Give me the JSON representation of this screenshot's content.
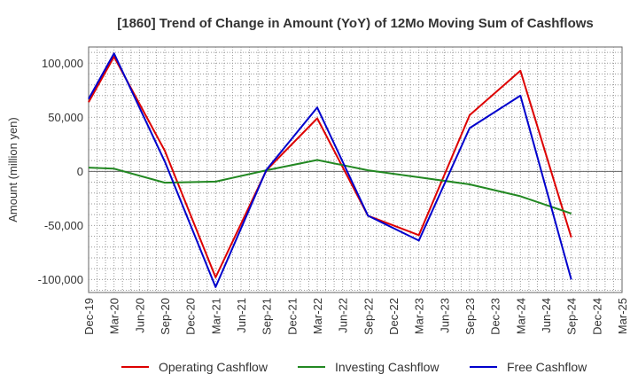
{
  "chart_data": {
    "type": "line",
    "title": "[1860]  Trend of Change in Amount (YoY) of 12Mo Moving Sum of Cashflows",
    "xlabel": "",
    "ylabel": "Amount (million yen)",
    "ylim": [
      -112000,
      115000
    ],
    "yticks": [
      100000,
      50000,
      0,
      -50000,
      -100000
    ],
    "ytick_labels": [
      "100,000",
      "50,000",
      "0",
      "-50,000",
      "-100,000"
    ],
    "categories": [
      "Dec-19",
      "Mar-20",
      "Jun-20",
      "Sep-20",
      "Dec-20",
      "Mar-21",
      "Jun-21",
      "Sep-21",
      "Dec-21",
      "Mar-22",
      "Jun-22",
      "Sep-22",
      "Dec-22",
      "Mar-23",
      "Jun-23",
      "Sep-23",
      "Dec-23",
      "Mar-24",
      "Jun-24",
      "Sep-24",
      "Dec-24",
      "Mar-25"
    ],
    "series": [
      {
        "name": "Operating Cashflow",
        "color": "#dd0000",
        "values": [
          64000,
          106000,
          null,
          19000,
          null,
          -98000,
          null,
          1000,
          null,
          49000,
          null,
          -41000,
          null,
          -59000,
          null,
          52000,
          null,
          93000,
          null,
          -61000,
          null,
          null
        ]
      },
      {
        "name": "Investing Cashflow",
        "color": "#228822",
        "values": [
          3500,
          2500,
          null,
          -10500,
          null,
          -9500,
          null,
          1000,
          null,
          10500,
          null,
          1000,
          null,
          -5500,
          null,
          -12000,
          null,
          -23000,
          null,
          -39000,
          null,
          null
        ]
      },
      {
        "name": "Free Cashflow",
        "color": "#0000cc",
        "values": [
          67000,
          109000,
          null,
          9000,
          null,
          -107000,
          null,
          1500,
          null,
          59000,
          null,
          -41000,
          null,
          -64000,
          null,
          40000,
          null,
          70000,
          null,
          -100000,
          null,
          null
        ]
      }
    ],
    "legend": "bottom"
  }
}
